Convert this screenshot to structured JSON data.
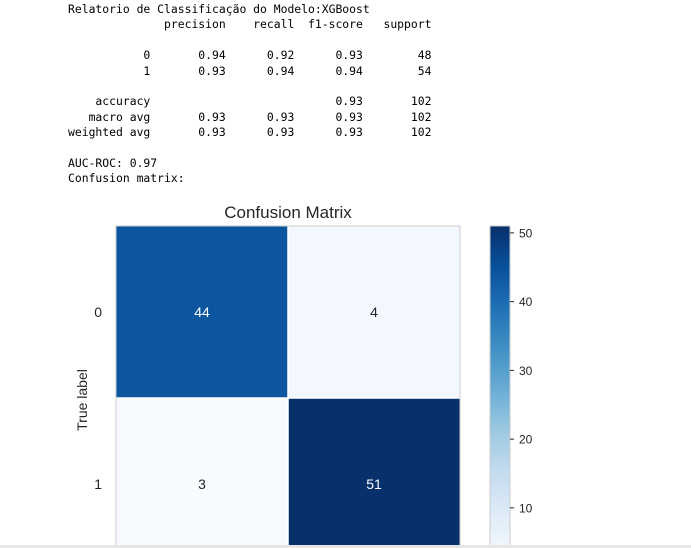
{
  "report": {
    "lines": [
      "Relatorio de Classificação do Modelo:XGBoost",
      "              precision    recall  f1-score   support",
      "",
      "           0       0.94      0.92      0.93        48",
      "           1       0.93      0.94      0.94        54",
      "",
      "    accuracy                           0.93       102",
      "   macro avg       0.93      0.93      0.93       102",
      "weighted avg       0.93      0.93      0.93       102",
      "",
      "AUC-ROC: 0.97",
      "Confusion matrix:"
    ]
  },
  "chart_data": {
    "type": "heatmap",
    "title": "Confusion Matrix",
    "ylabel": "True label",
    "row_labels": [
      "0",
      "1"
    ],
    "matrix": [
      [
        44,
        4
      ],
      [
        3,
        51
      ]
    ],
    "colormap": "Blues",
    "colorbar": {
      "ticks": [
        10,
        20,
        30,
        40,
        50
      ],
      "range": [
        3,
        51
      ]
    },
    "grid": true
  }
}
